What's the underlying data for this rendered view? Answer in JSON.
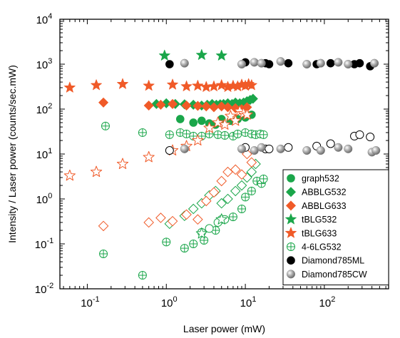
{
  "chart_data": {
    "type": "scatter",
    "title": "",
    "xlabel": "Laser power (mW)",
    "ylabel": "Intensity / Laser power (counts/sec.mW)",
    "xscale": "log",
    "yscale": "log",
    "xlim": [
      0.045,
      650
    ],
    "ylim": [
      0.01,
      10000
    ],
    "x_ticks": [
      {
        "value": 0.1,
        "base": "10",
        "exp": "-1"
      },
      {
        "value": 1,
        "base": "10",
        "exp": "0"
      },
      {
        "value": 10,
        "base": "10",
        "exp": "1"
      },
      {
        "value": 100,
        "base": "10",
        "exp": "2"
      }
    ],
    "y_ticks": [
      {
        "value": 0.01,
        "base": "10",
        "exp": "-2"
      },
      {
        "value": 0.1,
        "base": "10",
        "exp": "-1"
      },
      {
        "value": 1,
        "base": "10",
        "exp": "0"
      },
      {
        "value": 10,
        "base": "10",
        "exp": "1"
      },
      {
        "value": 100,
        "base": "10",
        "exp": "2"
      },
      {
        "value": 1000,
        "base": "10",
        "exp": "3"
      },
      {
        "value": 10000,
        "base": "10",
        "exp": "4"
      }
    ],
    "grid": false,
    "legend_position": "bottom-right",
    "colors": {
      "green": "#1aa64a",
      "orange": "#f05a28",
      "black": "#000000",
      "gray": "#9a9a9a"
    },
    "series": [
      {
        "name": "graph532",
        "marker": "circle",
        "color": "#1aa64a",
        "fill": "solid",
        "x": [
          1.5,
          2.2,
          2.8,
          3.5,
          4.2,
          5.0,
          6.5,
          8.0,
          10.0,
          12.0
        ],
        "y": [
          60,
          50,
          55,
          48,
          45,
          60,
          55,
          60,
          65,
          75
        ]
      },
      {
        "name": "ABBLG532",
        "marker": "diamond",
        "color": "#1aa64a",
        "fill": "solid",
        "x": [
          0.75,
          1.0,
          1.3,
          1.7,
          2.2,
          2.8,
          3.3,
          3.8,
          4.3,
          4.8,
          5.3,
          6.0,
          6.8,
          7.5,
          8.5,
          9.5,
          10.5,
          11.5,
          12.5
        ],
        "y": [
          130,
          135,
          130,
          128,
          125,
          120,
          125,
          130,
          125,
          128,
          130,
          135,
          130,
          140,
          135,
          140,
          150,
          160,
          170
        ]
      },
      {
        "name": "ABBLG633",
        "marker": "diamond",
        "color": "#f05a28",
        "fill": "solid",
        "x": [
          0.16,
          0.6,
          0.85,
          1.2,
          1.8,
          2.5,
          3.2,
          4.0,
          5.0,
          6.0,
          7.5,
          9.0,
          10.5
        ],
        "y": [
          140,
          120,
          125,
          130,
          120,
          118,
          115,
          110,
          115,
          110,
          105,
          100,
          110
        ]
      },
      {
        "name": "tBLG532",
        "marker": "star",
        "color": "#1aa64a",
        "fill": "solid",
        "x": [
          0.95,
          2.8,
          5.0
        ],
        "y": [
          1550,
          1600,
          1550
        ]
      },
      {
        "name": "tBLG633",
        "marker": "star",
        "color": "#f05a28",
        "fill": "solid",
        "x": [
          0.06,
          0.13,
          0.28,
          0.6,
          1.2,
          1.8,
          2.5,
          3.2,
          4.0,
          5.0,
          6.0,
          7.0,
          8.0,
          9.0,
          10.0,
          11.0,
          12.0
        ],
        "y": [
          300,
          340,
          360,
          330,
          350,
          320,
          330,
          310,
          320,
          340,
          310,
          330,
          320,
          350,
          330,
          360,
          340
        ]
      },
      {
        "name": "4-6LG532",
        "marker": "circle-plus",
        "color": "#1aa64a",
        "fill": "open",
        "x": [
          0.17,
          0.5,
          1.1,
          1.5,
          1.8,
          2.2,
          2.8,
          3.5,
          4.5,
          5.5,
          7.0,
          8.0,
          10.0,
          12.0,
          13.5,
          15.5,
          17.0
        ],
        "y": [
          42,
          30,
          27,
          30,
          28,
          25,
          25,
          28,
          27,
          26,
          25,
          28,
          30,
          28,
          27,
          28,
          27
        ]
      },
      {
        "name": "4-6LG532",
        "marker": "circle-plus",
        "color": "#1aa64a",
        "fill": "open",
        "x": [
          0.16,
          0.5,
          1.0,
          1.7,
          2.2,
          3.0,
          4.2,
          5.0,
          7.0,
          9.0,
          10.0,
          12.0,
          14.0,
          16.0,
          17.0
        ],
        "y": [
          0.06,
          0.02,
          0.11,
          0.08,
          0.1,
          0.12,
          0.2,
          0.35,
          0.4,
          0.6,
          1.1,
          1.5,
          2.5,
          2.2,
          2.8
        ]
      },
      {
        "name": "",
        "marker": "circle",
        "color": "#1aa64a",
        "fill": "open",
        "x": [
          2.8,
          3.5,
          4.5,
          5.5
        ],
        "y": [
          0.18,
          0.22,
          0.3,
          0.35
        ]
      },
      {
        "name": "",
        "marker": "diamond",
        "color": "#1aa64a",
        "fill": "open",
        "x": [
          1.1,
          1.7,
          2.2,
          2.8,
          3.5,
          4.2,
          5.0,
          6.0,
          7.5,
          9.0,
          10.5,
          12.0,
          13.5
        ],
        "y": [
          0.28,
          0.42,
          0.6,
          0.8,
          1.2,
          1.5,
          0.8,
          1.0,
          1.5,
          2.0,
          3.0,
          4.0,
          6.0
        ]
      },
      {
        "name": "",
        "marker": "diamond",
        "color": "#f05a28",
        "fill": "open",
        "x": [
          0.16,
          0.6,
          0.85,
          1.2,
          1.8,
          2.5,
          3.2,
          4.0,
          5.0,
          6.0,
          7.5,
          9.0,
          10.5,
          12.0
        ],
        "y": [
          0.25,
          0.3,
          0.38,
          0.32,
          0.45,
          0.35,
          0.9,
          1.4,
          2.5,
          4.0,
          4.5,
          3.5,
          10.0,
          6.5
        ]
      },
      {
        "name": "",
        "marker": "star",
        "color": "#1aa64a",
        "fill": "open",
        "x": [
          2.8,
          5.0
        ],
        "y": [
          0.17,
          0.35
        ]
      },
      {
        "name": "",
        "marker": "star",
        "color": "#f05a28",
        "fill": "open",
        "x": [
          0.06,
          0.13,
          0.28,
          0.6,
          1.2,
          1.8,
          2.5,
          3.5,
          4.5,
          5.5,
          6.5,
          7.5,
          8.5,
          9.5,
          10.5
        ],
        "y": [
          3.3,
          4.0,
          6.0,
          8.5,
          12,
          15,
          20,
          38,
          50,
          45,
          70,
          55,
          90,
          80,
          75
        ]
      },
      {
        "name": "Diamond785ML",
        "marker": "circle",
        "color": "#000000",
        "fill": "solid",
        "x": [
          1.1,
          10.0,
          18.0,
          20.0,
          35.0,
          80.0,
          120.0,
          240.0,
          280.0,
          380.0
        ],
        "y": [
          1000,
          1100,
          1050,
          1000,
          1050,
          1000,
          1050,
          1000,
          1050,
          900
        ]
      },
      {
        "name": "",
        "marker": "circle",
        "color": "#000000",
        "fill": "open",
        "x": [
          1.1,
          10.0,
          18.0,
          20.0,
          35.0,
          80.0,
          120.0,
          240.0,
          280.0,
          380.0
        ],
        "y": [
          12,
          14,
          13,
          13,
          14,
          15,
          17,
          25,
          27,
          24
        ]
      },
      {
        "name": "Diamond785CW",
        "marker": "ball",
        "color": "#9a9a9a",
        "fill": "solid",
        "x": [
          1.7,
          9.0,
          13.0,
          16.0,
          28.0,
          60.0,
          90.0,
          150.0,
          200.0,
          430.0
        ],
        "y": [
          1050,
          1000,
          1100,
          1050,
          1150,
          1000,
          1050,
          1100,
          1000,
          1050
        ]
      },
      {
        "name": "",
        "marker": "ball",
        "color": "#9a9a9a",
        "fill": "solid",
        "x": [
          1.7,
          9.0,
          13.0,
          16.0,
          28.0,
          60.0,
          90.0,
          150.0,
          200.0,
          400.0,
          450.0
        ],
        "y": [
          13,
          13,
          12,
          14,
          13,
          12,
          12,
          14,
          13,
          11,
          12
        ]
      }
    ]
  }
}
